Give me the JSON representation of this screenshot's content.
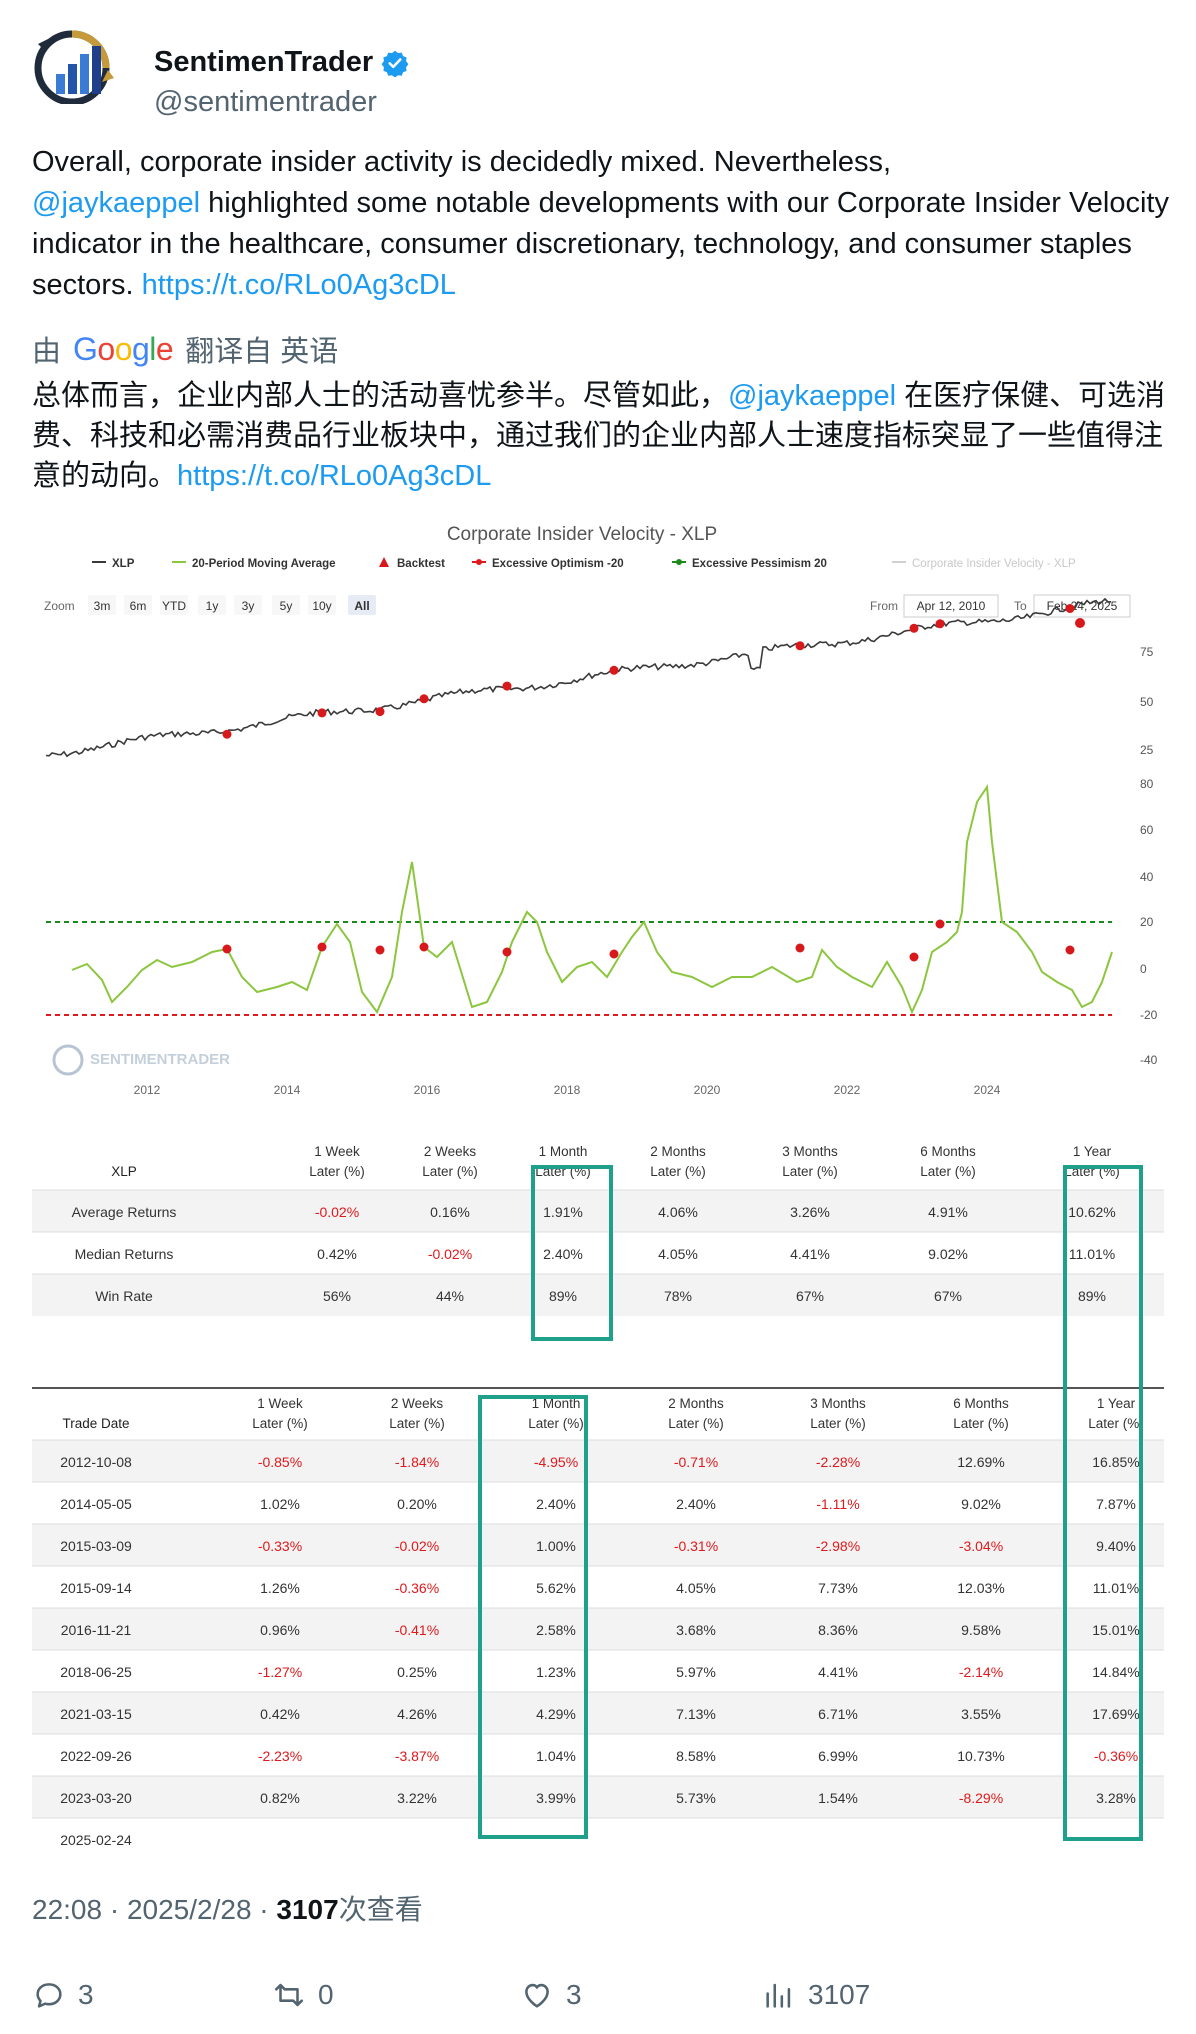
{
  "user": {
    "name": "SentimenTrader",
    "handle": "@sentimentrader"
  },
  "tweet": {
    "text_1": "Overall, corporate insider activity is decidedly mixed. Nevertheless,",
    "mention": "@jaykaeppel",
    "text_2": " highlighted some notable developments with our Corporate Insider Velocity indicator in the healthcare, consumer discretionary, technology, and consumer staples sectors. ",
    "link": "https://t.co/RLo0Ag3cDL"
  },
  "translation": {
    "by": "由",
    "google": "Google",
    "from": "翻译自 英语",
    "text_1": "总体而言，企业内部人士的活动喜忧参半。尽管如此，",
    "mention": "@jaykaeppel",
    "text_2": " 在医疗保健、可选消费、科技和必需消费品行业板块中，通过我们的企业内部人士速度指标突显了一些值得注意的动向。",
    "link": "https://t.co/RLo0Ag3cDL"
  },
  "chart_data": {
    "type": "line",
    "title": "Corporate Insider Velocity - XLP",
    "legend": [
      "XLP",
      "20-Period Moving Average",
      "Backtest",
      "Excessive Optimism -20",
      "Excessive Pessimism 20",
      "Corporate Insider Velocity - XLP"
    ],
    "zoom_label": "Zoom",
    "zoom_options": [
      "3m",
      "6m",
      "YTD",
      "1y",
      "3y",
      "5y",
      "10y",
      "All"
    ],
    "zoom_selected": "All",
    "from_label": "From",
    "from_value": "Apr 12, 2010",
    "to_label": "To",
    "to_value": "Feb 24, 2025",
    "x_ticks": [
      "2012",
      "2014",
      "2016",
      "2018",
      "2020",
      "2022",
      "2024"
    ],
    "price_ticks": [
      "75",
      "50",
      "25"
    ],
    "indicator_ticks": [
      "80",
      "60",
      "40",
      "20",
      "0",
      "-20",
      "-40"
    ],
    "watermark": "SENTIMENTRADER",
    "threshold_high": 20,
    "threshold_low": -20,
    "colors": {
      "price": "#3a3a3a",
      "indicator": "#8cc63f",
      "backtest": "#d7191c",
      "pessimism": "#1a8a1a",
      "optimism": "#e0191c"
    }
  },
  "summary_table": {
    "corner": "XLP",
    "headers": [
      "1 Week\nLater (%)",
      "2 Weeks\nLater (%)",
      "1 Month\nLater (%)",
      "2 Months\nLater (%)",
      "3 Months\nLater (%)",
      "6 Months\nLater (%)",
      "1 Year\nLater (%)"
    ],
    "rows": [
      {
        "label": "Average Returns",
        "values": [
          "-0.02%",
          "0.16%",
          "1.91%",
          "4.06%",
          "3.26%",
          "4.91%",
          "10.62%"
        ]
      },
      {
        "label": "Median Returns",
        "values": [
          "0.42%",
          "-0.02%",
          "2.40%",
          "4.05%",
          "4.41%",
          "9.02%",
          "11.01%"
        ]
      },
      {
        "label": "Win Rate",
        "values": [
          "56%",
          "44%",
          "89%",
          "78%",
          "67%",
          "67%",
          "89%"
        ]
      }
    ]
  },
  "trade_table": {
    "corner": "Trade Date",
    "headers": [
      "1 Week\nLater (%)",
      "2 Weeks\nLater (%)",
      "1 Month\nLater (%)",
      "2 Months\nLater (%)",
      "3 Months\nLater (%)",
      "6 Months\nLater (%)",
      "1 Year\nLater (%)"
    ],
    "rows": [
      {
        "date": "2012-10-08",
        "values": [
          "-0.85%",
          "-1.84%",
          "-4.95%",
          "-0.71%",
          "-2.28%",
          "12.69%",
          "16.85%"
        ]
      },
      {
        "date": "2014-05-05",
        "values": [
          "1.02%",
          "0.20%",
          "2.40%",
          "2.40%",
          "-1.11%",
          "9.02%",
          "7.87%"
        ]
      },
      {
        "date": "2015-03-09",
        "values": [
          "-0.33%",
          "-0.02%",
          "1.00%",
          "-0.31%",
          "-2.98%",
          "-3.04%",
          "9.40%"
        ]
      },
      {
        "date": "2015-09-14",
        "values": [
          "1.26%",
          "-0.36%",
          "5.62%",
          "4.05%",
          "7.73%",
          "12.03%",
          "11.01%"
        ]
      },
      {
        "date": "2016-11-21",
        "values": [
          "0.96%",
          "-0.41%",
          "2.58%",
          "3.68%",
          "8.36%",
          "9.58%",
          "15.01%"
        ]
      },
      {
        "date": "2018-06-25",
        "values": [
          "-1.27%",
          "0.25%",
          "1.23%",
          "5.97%",
          "4.41%",
          "-2.14%",
          "14.84%"
        ]
      },
      {
        "date": "2021-03-15",
        "values": [
          "0.42%",
          "4.26%",
          "4.29%",
          "7.13%",
          "6.71%",
          "3.55%",
          "17.69%"
        ]
      },
      {
        "date": "2022-09-26",
        "values": [
          "-2.23%",
          "-3.87%",
          "1.04%",
          "8.58%",
          "6.99%",
          "10.73%",
          "-0.36%"
        ]
      },
      {
        "date": "2023-03-20",
        "values": [
          "0.82%",
          "3.22%",
          "3.99%",
          "5.73%",
          "1.54%",
          "-8.29%",
          "3.28%"
        ]
      },
      {
        "date": "2025-02-24",
        "values": [
          "",
          "",
          "",
          "",
          "",
          "",
          ""
        ]
      }
    ]
  },
  "meta": {
    "time": "22:08 · 2025/2/28 · ",
    "views": "3107",
    "views_label": "次查看"
  },
  "actions": {
    "replies": "3",
    "retweets": "0",
    "likes": "3",
    "views": "3107"
  }
}
